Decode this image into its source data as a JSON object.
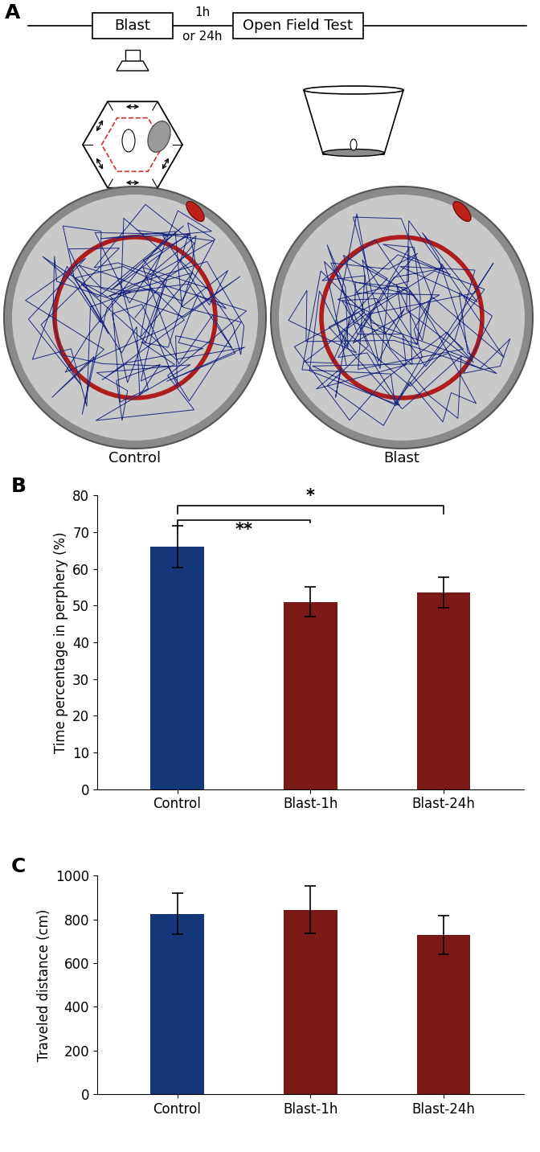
{
  "diagram": {
    "panel_label": "A",
    "timeline": {
      "steps": [
        "Blast",
        "Open Field Test"
      ],
      "interval": [
        "1h",
        "or 24h"
      ]
    },
    "arenas": [
      "Control",
      "Blast"
    ]
  },
  "chart_data": [
    {
      "type": "bar",
      "title": "B",
      "ylabel": "Time percentage in perphery (%)",
      "categories": [
        "Control",
        "Blast-1h",
        "Blast-24h"
      ],
      "values": [
        66,
        51,
        53.5
      ],
      "errors": [
        5.7,
        4.1,
        4.2
      ],
      "colors": [
        "#14377a",
        "#7a1915",
        "#7a1915"
      ],
      "ylim": [
        0,
        80
      ],
      "yticks": [
        0,
        10,
        20,
        30,
        40,
        50,
        60,
        70,
        80
      ],
      "annotations": [
        {
          "text": "**",
          "between": [
            "Control",
            "Blast-1h"
          ]
        },
        {
          "text": "*",
          "between": [
            "Control",
            "Blast-24h"
          ]
        }
      ]
    },
    {
      "type": "bar",
      "title": "C",
      "ylabel": "Traveled distance (cm)",
      "categories": [
        "Control",
        "Blast-1h",
        "Blast-24h"
      ],
      "values": [
        825,
        843,
        728
      ],
      "errors": [
        93,
        108,
        88
      ],
      "colors": [
        "#14377a",
        "#7a1915",
        "#7a1915"
      ],
      "ylim": [
        0,
        1000
      ],
      "yticks": [
        0,
        200,
        400,
        600,
        800,
        1000
      ]
    }
  ]
}
